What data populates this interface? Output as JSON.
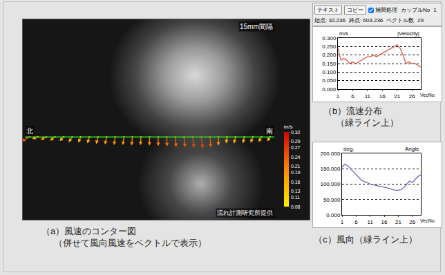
{
  "header": {
    "buttons": [
      "テキスト",
      "コピー"
    ],
    "checkbox": "補間処理",
    "couple_label": "カップルNo",
    "couple_value": "1",
    "start": "始点: 32.236",
    "end": "終点: 603.236",
    "vector_label": "ベクトル数",
    "vector_value": "29"
  },
  "chart_data": [
    {
      "type": "vector",
      "caption": [
        "（a）風速のコンター図",
        "（併せて風向風速をベクトルで表示）"
      ],
      "texts": {
        "spacing": "15mm間隔",
        "north": "北",
        "south": "南",
        "credit": "流れ計測研究所提供"
      },
      "colorbar": {
        "title": "m/s",
        "range": [
          0.08,
          0.32
        ],
        "ticks": [
          0.08,
          0.11,
          0.13,
          0.16,
          0.19,
          0.21,
          0.24,
          0.27,
          0.29,
          0.32
        ]
      }
    },
    {
      "type": "line",
      "title": "|Velocity|",
      "ylabel": "m/s",
      "xlabel": "VecNo.",
      "caption": [
        "（b）流速分布",
        "（緑ライン上）"
      ],
      "x": [
        1,
        2,
        3,
        4,
        5,
        6,
        7,
        8,
        9,
        10,
        11,
        12,
        13,
        14,
        15,
        16,
        17,
        18,
        19,
        20,
        21,
        22,
        23,
        24,
        25,
        26,
        27,
        28,
        29
      ],
      "values": [
        0.24,
        0.17,
        0.18,
        0.17,
        0.15,
        0.16,
        0.15,
        0.16,
        0.17,
        0.18,
        0.19,
        0.19,
        0.2,
        0.19,
        0.2,
        0.21,
        0.22,
        0.23,
        0.24,
        0.25,
        0.26,
        0.24,
        0.2,
        0.15,
        0.16,
        0.15,
        0.15,
        0.14,
        0.13
      ],
      "color": "#e05a48",
      "xlim": [
        1,
        29
      ],
      "xticks": [
        1,
        6,
        11,
        16,
        21,
        26
      ],
      "ylim": [
        0,
        0.3
      ],
      "yticks": [
        {
          "value": 0,
          "label": "0.000"
        },
        {
          "value": 0.05,
          "label": "0.050"
        },
        {
          "value": 0.1,
          "label": "0.100"
        },
        {
          "value": 0.15,
          "label": "0.150"
        },
        {
          "value": 0.2,
          "label": "0.200"
        },
        {
          "value": 0.25,
          "label": "0.250"
        },
        {
          "value": 0.3,
          "label": "0.300"
        }
      ],
      "grid": true
    },
    {
      "type": "line",
      "title": "Angle",
      "ylabel": "deg.",
      "xlabel": "VecNo.",
      "caption": [
        "（c）風向（緑ライン上）"
      ],
      "x": [
        1,
        2,
        3,
        4,
        5,
        6,
        7,
        8,
        9,
        10,
        11,
        12,
        13,
        14,
        15,
        16,
        17,
        18,
        19,
        20,
        21,
        22,
        23,
        24,
        25,
        26,
        27,
        28,
        29
      ],
      "values": [
        155,
        165,
        160,
        150,
        140,
        130,
        120,
        112,
        108,
        105,
        100,
        98,
        97,
        95,
        92,
        90,
        88,
        85,
        82,
        80,
        80,
        82,
        90,
        100,
        110,
        105,
        115,
        125,
        130
      ],
      "color": "#6868b8",
      "xlim": [
        1,
        29
      ],
      "xticks": [
        1,
        6,
        11,
        16,
        21,
        26
      ],
      "ylim": [
        0,
        200
      ],
      "yticks": [
        {
          "value": 0,
          "label": "0.000"
        },
        {
          "value": 50,
          "label": "50.000"
        },
        {
          "value": 100,
          "label": "100.000"
        },
        {
          "value": 150,
          "label": "150.000"
        },
        {
          "value": 200,
          "label": "200.000"
        }
      ],
      "grid": true
    }
  ]
}
